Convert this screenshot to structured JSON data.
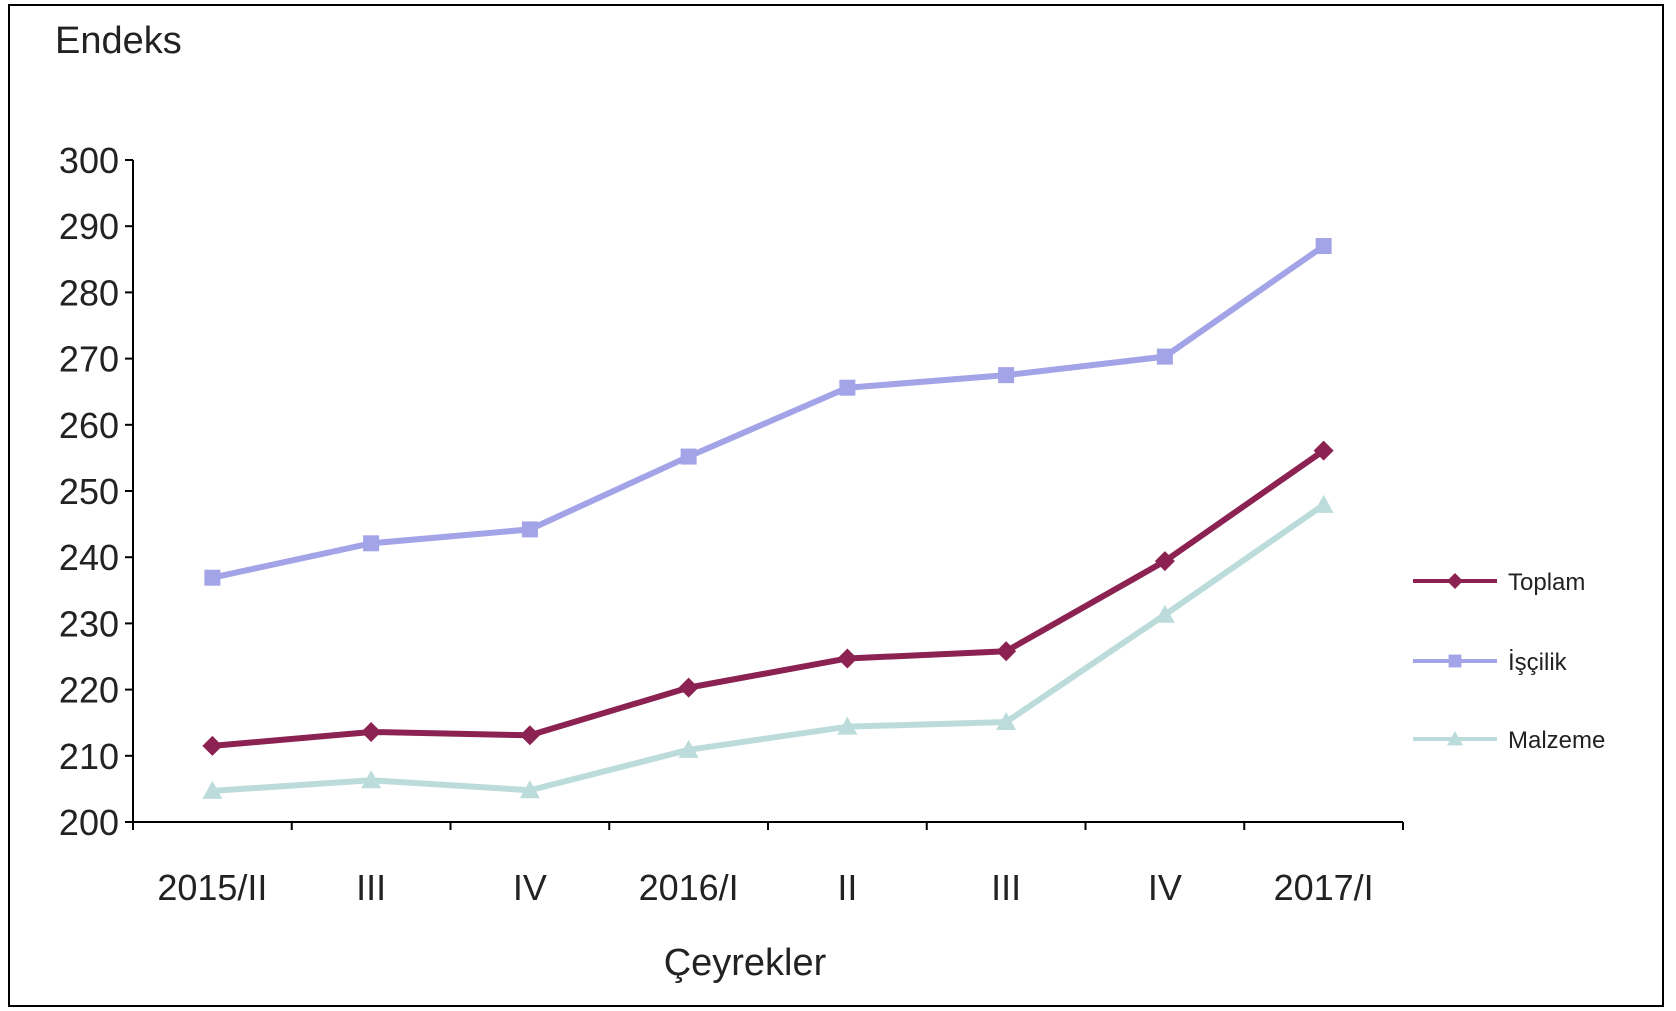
{
  "chart_data": {
    "type": "line",
    "ylabel": "Endeks",
    "xlabel": "Çeyrekler",
    "categories": [
      "2015/II",
      "III",
      "IV",
      "2016/I",
      "II",
      "III",
      "IV",
      "2017/I"
    ],
    "ylim": [
      200,
      300
    ],
    "yticks": [
      200,
      210,
      220,
      230,
      240,
      250,
      260,
      270,
      280,
      290,
      300
    ],
    "grid": false,
    "legend_position": "right",
    "series": [
      {
        "name": "Toplam",
        "color": "#8b2252",
        "marker": "diamond",
        "values": [
          211.5,
          213.6,
          213.1,
          220.3,
          224.7,
          225.8,
          239.4,
          256.1
        ]
      },
      {
        "name": "İşçilik",
        "color": "#a3a3e8",
        "marker": "square",
        "values": [
          236.9,
          242.1,
          244.2,
          255.2,
          265.6,
          267.5,
          270.3,
          287.0
        ]
      },
      {
        "name": "Malzeme",
        "color": "#bcdcdc",
        "marker": "triangle",
        "values": [
          204.7,
          206.3,
          204.8,
          210.9,
          214.4,
          215.1,
          231.3,
          247.9
        ]
      }
    ]
  }
}
